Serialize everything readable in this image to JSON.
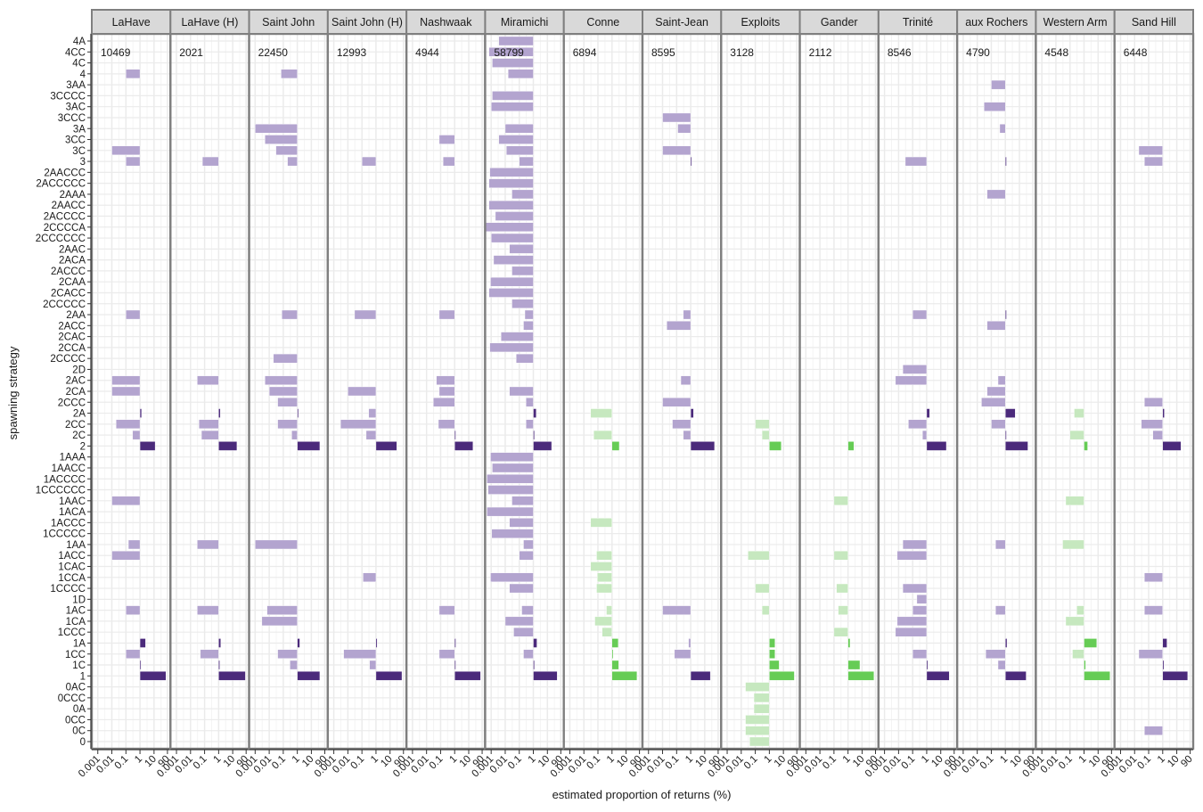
{
  "chart_data": {
    "type": "bar",
    "orientation": "horizontal",
    "facet": "columns",
    "xlabel": "estimated proportion of returns (%)",
    "ylabel": "spawning strategy",
    "xscale": "log10",
    "xbaseline": 1,
    "xlim": [
      0.0005,
      110
    ],
    "xticks": [
      0.001,
      0.01,
      0.1,
      1,
      10,
      90
    ],
    "xtick_labels": [
      "0.001",
      "0.01",
      "0.1",
      "1",
      "10",
      "90"
    ],
    "grid": true,
    "colors": {
      "purple_major": "#4b2a7b",
      "purple_minor": "#b3a4cf",
      "green_major": "#66cc55",
      "green_minor": "#c6e8bf",
      "strip_bg": "#d9d9d9",
      "panel_border": "#7f7f7f",
      "grid": "#ebebeb"
    },
    "categories": [
      "4A",
      "4CC",
      "4C",
      "4",
      "3AA",
      "3CCCC",
      "3AC",
      "3CCC",
      "3A",
      "3CC",
      "3C",
      "3",
      "2AACCC",
      "2ACCCCC",
      "2AAA",
      "2AACC",
      "2ACCCC",
      "2CCCCA",
      "2CCCCCC",
      "2AAC",
      "2ACA",
      "2ACCC",
      "2CAA",
      "2CACC",
      "2CCCCC",
      "2AA",
      "2ACC",
      "2CAC",
      "2CCA",
      "2CCCC",
      "2D",
      "2AC",
      "2CA",
      "2CCC",
      "2A",
      "2CC",
      "2C",
      "2",
      "1AAA",
      "1AACC",
      "1ACCCC",
      "1CCCCCC",
      "1AAC",
      "1ACA",
      "1ACCC",
      "1CCCCC",
      "1AA",
      "1ACC",
      "1CAC",
      "1CCA",
      "1CCCC",
      "1D",
      "1AC",
      "1CA",
      "1CCC",
      "1A",
      "1CC",
      "1C",
      "1",
      "0AC",
      "0CCC",
      "0A",
      "0CC",
      "0C",
      "0"
    ],
    "panels": [
      {
        "name": "LaHave",
        "n": "10469",
        "palette": "purple",
        "values": {
          "4": 0.1,
          "3C": 0.01,
          "3": 0.1,
          "2AA": 0.1,
          "2AC": 0.01,
          "2CA": 0.01,
          "2A": 1.3,
          "2CC": 0.02,
          "2C": 0.3,
          "2": 12,
          "1AAC": 0.01,
          "1AA": 0.15,
          "1ACC": 0.01,
          "1AC": 0.1,
          "1A": 2.5,
          "1CC": 0.1,
          "1C": 1.05,
          "1": 70
        }
      },
      {
        "name": "LaHave (H)",
        "n": "2021",
        "palette": "purple",
        "values": {
          "3": 0.07,
          "2AC": 0.03,
          "2A": 1.3,
          "2CC": 0.04,
          "2C": 0.06,
          "2": 20,
          "1AA": 0.03,
          "1AC": 0.03,
          "1A": 1.4,
          "1CC": 0.05,
          "1C": 1.05,
          "1": 80
        }
      },
      {
        "name": "Saint John",
        "n": "22450",
        "palette": "purple",
        "values": {
          "4": 0.07,
          "3A": 0.001,
          "3CC": 0.005,
          "3C": 0.03,
          "3": 0.2,
          "2AA": 0.08,
          "2CCC": 0.04,
          "2AC": 0.005,
          "2CA": 0.01,
          "2CCCC": 0.02,
          "2A": 1.2,
          "2CC": 0.04,
          "2C": 0.4,
          "2": 40,
          "1AA": 0.001,
          "1AC": 0.007,
          "1CA": 0.003,
          "1A": 1.5,
          "1CC": 0.04,
          "1C": 0.3,
          "1": 40
        }
      },
      {
        "name": "Saint John (H)",
        "n": "12993",
        "palette": "purple",
        "values": {
          "3": 0.1,
          "2AA": 0.03,
          "2CA": 0.01,
          "2A": 0.3,
          "2CC": 0.003,
          "2C": 0.2,
          "2": 30,
          "1CCA": 0.12,
          "1A": 1.2,
          "1CC": 0.005,
          "1C": 0.35,
          "1": 70
        }
      },
      {
        "name": "Nashwaak",
        "n": "4944",
        "palette": "purple",
        "values": {
          "3CC": 0.08,
          "3": 0.15,
          "2AA": 0.08,
          "2AC": 0.05,
          "2CA": 0.08,
          "2CCC": 0.03,
          "2CC": 0.07,
          "2C": 1.05,
          "2": 20,
          "1AC": 0.08,
          "1A": 1.2,
          "1CC": 0.08,
          "1C": 1.05,
          "1": 70
        }
      },
      {
        "name": "Miramichi",
        "n": "58799",
        "palette": "purple",
        "values": {
          "4A": 0.0035,
          "4CC": 0.0007,
          "4C": 0.0012,
          "4": 0.016,
          "3CCCC": 0.0012,
          "3AC": 0.001,
          "3A": 0.01,
          "3CC": 0.0035,
          "3C": 0.012,
          "3": 0.1,
          "2AACCC": 0.0008,
          "2ACCCCC": 0.0007,
          "2AAA": 0.03,
          "2AACC": 0.0007,
          "2ACCCC": 0.002,
          "2CCCCA": 0.0004,
          "2CCCCCC": 0.001,
          "2AAC": 0.02,
          "2ACA": 0.0015,
          "2ACCC": 0.03,
          "2CAA": 0.0009,
          "2CACC": 0.0007,
          "2CCCCC": 0.03,
          "2AA": 0.25,
          "2ACC": 0.2,
          "2CAC": 0.005,
          "2CCA": 0.0008,
          "2CCCC": 0.06,
          "2CA": 0.02,
          "2CCC": 0.3,
          "2A": 1.6,
          "2CC": 0.3,
          "2C": 1.2,
          "2": 20,
          "1AAA": 0.0009,
          "1AACC": 0.0012,
          "1ACCCC": 0.0005,
          "1CCCCCC": 0.0006,
          "1AAC": 0.03,
          "1ACA": 0.0005,
          "1ACCC": 0.02,
          "1CCCCC": 0.0011,
          "1AA": 0.2,
          "1ACC": 0.1,
          "1CCA": 0.0009,
          "1CCCC": 0.02,
          "1AC": 0.15,
          "1CA": 0.01,
          "1CCC": 0.04,
          "1A": 1.8,
          "1CC": 0.2,
          "1C": 1.05,
          "1": 50
        }
      },
      {
        "name": "Conne",
        "n": "6894",
        "palette": "green",
        "values": {
          "2A": 0.03,
          "2C": 0.05,
          "2": 3.3,
          "1ACCC": 0.03,
          "1ACC": 0.08,
          "1CAC": 0.03,
          "1CCA": 0.09,
          "1CCCC": 0.08,
          "1AC": 0.4,
          "1CA": 0.06,
          "1CCC": 0.2,
          "1A": 2.8,
          "1CC": 1.05,
          "1C": 3.0,
          "1": 60
        }
      },
      {
        "name": "Saint-Jean",
        "n": "8595",
        "palette": "purple",
        "values": {
          "3CCC": 0.01,
          "3A": 0.12,
          "3C": 0.01,
          "3": 1.2,
          "2AA": 0.3,
          "2ACC": 0.02,
          "2AC": 0.2,
          "2CCC": 0.01,
          "2A": 1.6,
          "2CC": 0.05,
          "2C": 0.3,
          "2": 50,
          "1AC": 0.01,
          "1A": 0.7,
          "1CC": 0.07,
          "1": 25
        }
      },
      {
        "name": "Exploits",
        "n": "3128",
        "palette": "green",
        "values": {
          "2CC": 0.1,
          "2C": 0.3,
          "2": 7,
          "1ACC": 0.03,
          "1CCCC": 0.1,
          "1AC": 0.3,
          "1A": 2.5,
          "1CC": 2.5,
          "1C": 5,
          "1": 60,
          "0AC": 0.02,
          "0CCC": 0.08,
          "0A": 0.08,
          "0CC": 0.02,
          "0C": 0.02,
          "0": 0.04
        }
      },
      {
        "name": "Gander",
        "n": "2112",
        "palette": "green",
        "values": {
          "2": 2.6,
          "1AAC": 0.1,
          "1ACC": 0.1,
          "1CCCC": 0.15,
          "1AC": 0.2,
          "1CCC": 0.1,
          "1A": 1.4,
          "1C": 7,
          "1": 70
        }
      },
      {
        "name": "Trinité",
        "n": "8546",
        "palette": "purple",
        "values": {
          "3": 0.03,
          "2AA": 0.1,
          "2D": 0.02,
          "2AC": 0.006,
          "2A": 1.6,
          "2CC": 0.05,
          "2C": 0.5,
          "2": 25,
          "1AA": 0.02,
          "1ACC": 0.008,
          "1CCCC": 0.02,
          "1D": 0.2,
          "1AC": 0.1,
          "1CA": 0.008,
          "1CCC": 0.006,
          "1CC": 0.1,
          "1C": 1.05,
          "1": 40
        }
      },
      {
        "name": "aux Rochers",
        "n": "4790",
        "palette": "purple",
        "values": {
          "3AA": 0.1,
          "3AC": 0.03,
          "3A": 0.4,
          "3": 1.2,
          "2AAA": 0.05,
          "2AA": 1.2,
          "2ACC": 0.05,
          "2AC": 0.3,
          "2CA": 0.05,
          "2CCC": 0.02,
          "2A": 5,
          "2CC": 0.1,
          "2C": 1.05,
          "2": 40,
          "1AA": 0.2,
          "1AC": 0.2,
          "1A": 1.3,
          "1CC": 0.04,
          "1C": 0.3,
          "1": 30
        }
      },
      {
        "name": "Western Arm",
        "n": "4548",
        "palette": "green",
        "values": {
          "2A": 0.2,
          "2C": 0.1,
          "2": 1.8,
          "1AAC": 0.05,
          "1AA": 0.03,
          "1AC": 0.3,
          "1CA": 0.05,
          "1A": 8,
          "1CC": 0.15,
          "1C": 1.3,
          "1": 70
        }
      },
      {
        "name": "Sand Hill",
        "n": "6448",
        "palette": "purple",
        "values": {
          "3C": 0.02,
          "3": 0.05,
          "2CCC": 0.05,
          "2A": 1.3,
          "2CC": 0.03,
          "2C": 0.2,
          "2": 20,
          "1CCA": 0.05,
          "1AC": 0.05,
          "1A": 2,
          "1CC": 0.02,
          "1C": 1.2,
          "1": 60,
          "0C": 0.05
        }
      }
    ]
  }
}
